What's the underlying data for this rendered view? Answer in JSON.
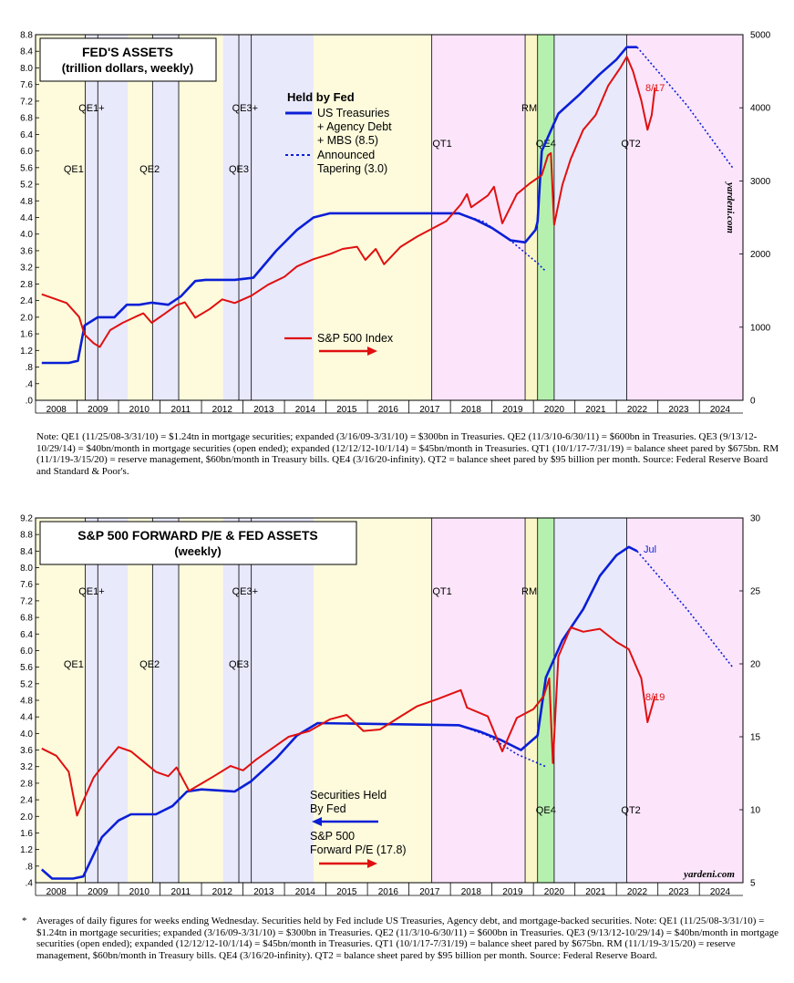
{
  "chart_data": [
    {
      "type": "line",
      "title": "FED'S ASSETS",
      "subtitle": "(trillion dollars, weekly)",
      "x_labels": [
        "2008",
        "2009",
        "2010",
        "2011",
        "2012",
        "2013",
        "2014",
        "2015",
        "2016",
        "2017",
        "2018",
        "2019",
        "2020",
        "2021",
        "2022",
        "2023",
        "2024"
      ],
      "left_axis": {
        "ylim": [
          0,
          8.8
        ],
        "ticks": [
          ".0",
          ".4",
          ".8",
          "1.2",
          "1.6",
          "2.0",
          "2.4",
          "2.8",
          "3.2",
          "3.6",
          "4.0",
          "4.4",
          "4.8",
          "5.2",
          "5.6",
          "6.0",
          "6.4",
          "6.8",
          "7.2",
          "7.6",
          "8.0",
          "8.4",
          "8.8"
        ]
      },
      "right_axis": {
        "ylim": [
          0,
          5000
        ],
        "ticks": [
          "0",
          "1000",
          "2000",
          "3000",
          "4000",
          "5000"
        ]
      },
      "legend_head": "Held by Fed",
      "legend_entries": [
        "US Treasuries",
        "+ Agency Debt",
        "+ MBS (8.5)",
        "Announced",
        "Tapering (3.0)",
        "S&P 500 Index"
      ],
      "watermark": "yardeni.com",
      "end_label": "8/17",
      "band_labels": [
        "QE1+",
        "QE1",
        "QE2",
        "QE3+",
        "QE3",
        "QT1",
        "RM",
        "QE4",
        "QT2"
      ],
      "series": [
        {
          "name": "Fed Assets (trillion $)",
          "axis": "left",
          "color": "#0a1fd6",
          "points": [
            [
              2007.85,
              0.9
            ],
            [
              2008.5,
              0.9
            ],
            [
              2008.72,
              0.95
            ],
            [
              2008.88,
              1.8
            ],
            [
              2009.2,
              2.0
            ],
            [
              2009.6,
              2.0
            ],
            [
              2009.9,
              2.3
            ],
            [
              2010.2,
              2.3
            ],
            [
              2010.5,
              2.35
            ],
            [
              2010.9,
              2.3
            ],
            [
              2011.2,
              2.5
            ],
            [
              2011.55,
              2.87
            ],
            [
              2011.8,
              2.9
            ],
            [
              2012.5,
              2.9
            ],
            [
              2012.95,
              2.95
            ],
            [
              2013.5,
              3.6
            ],
            [
              2014.0,
              4.1
            ],
            [
              2014.4,
              4.4
            ],
            [
              2014.8,
              4.5
            ],
            [
              2017.9,
              4.5
            ],
            [
              2018.3,
              4.35
            ],
            [
              2018.7,
              4.15
            ],
            [
              2019.15,
              3.85
            ],
            [
              2019.5,
              3.8
            ],
            [
              2019.75,
              4.1
            ],
            [
              2019.8,
              4.3
            ],
            [
              2019.9,
              6.0
            ],
            [
              2020.3,
              6.9
            ],
            [
              2020.8,
              7.35
            ],
            [
              2021.3,
              7.85
            ],
            [
              2021.7,
              8.2
            ],
            [
              2021.95,
              8.5
            ],
            [
              2022.2,
              8.5
            ]
          ]
        },
        {
          "name": "Announced Tapering (trillion $)",
          "axis": "left",
          "color": "#0a1fd6",
          "dash": true,
          "points": [
            [
              2017.9,
              4.5
            ],
            [
              2018.5,
              4.3
            ],
            [
              2019.2,
              3.8
            ],
            [
              2019.8,
              3.3
            ],
            [
              2020.0,
              3.1
            ]
          ]
        },
        {
          "name": "Announced Tapering path (trillion $)",
          "axis": "left",
          "color": "#0a1fd6",
          "dash": true,
          "points": [
            [
              2022.2,
              8.5
            ],
            [
              2023.4,
              7.1
            ],
            [
              2024.5,
              5.6
            ]
          ]
        },
        {
          "name": "S&P 500 Index",
          "axis": "right",
          "color": "#e01010",
          "points": [
            [
              2007.85,
              1450
            ],
            [
              2008.2,
              1380
            ],
            [
              2008.45,
              1330
            ],
            [
              2008.75,
              1140
            ],
            [
              2008.88,
              900
            ],
            [
              2009.1,
              780
            ],
            [
              2009.25,
              730
            ],
            [
              2009.5,
              960
            ],
            [
              2009.8,
              1060
            ],
            [
              2010.1,
              1140
            ],
            [
              2010.3,
              1190
            ],
            [
              2010.5,
              1060
            ],
            [
              2010.8,
              1180
            ],
            [
              2011.1,
              1300
            ],
            [
              2011.3,
              1340
            ],
            [
              2011.55,
              1130
            ],
            [
              2011.9,
              1250
            ],
            [
              2012.2,
              1380
            ],
            [
              2012.5,
              1330
            ],
            [
              2012.9,
              1430
            ],
            [
              2013.3,
              1580
            ],
            [
              2013.7,
              1690
            ],
            [
              2014.0,
              1830
            ],
            [
              2014.4,
              1930
            ],
            [
              2014.8,
              2000
            ],
            [
              2015.1,
              2070
            ],
            [
              2015.45,
              2100
            ],
            [
              2015.65,
              1920
            ],
            [
              2015.9,
              2070
            ],
            [
              2016.1,
              1860
            ],
            [
              2016.5,
              2100
            ],
            [
              2016.9,
              2240
            ],
            [
              2017.3,
              2360
            ],
            [
              2017.6,
              2450
            ],
            [
              2017.95,
              2680
            ],
            [
              2018.1,
              2820
            ],
            [
              2018.2,
              2640
            ],
            [
              2018.6,
              2800
            ],
            [
              2018.75,
              2920
            ],
            [
              2018.95,
              2420
            ],
            [
              2019.3,
              2820
            ],
            [
              2019.6,
              2960
            ],
            [
              2019.9,
              3080
            ],
            [
              2020.05,
              3350
            ],
            [
              2020.12,
              3380
            ],
            [
              2020.2,
              2400
            ],
            [
              2020.4,
              2950
            ],
            [
              2020.6,
              3300
            ],
            [
              2020.9,
              3700
            ],
            [
              2021.2,
              3900
            ],
            [
              2021.5,
              4300
            ],
            [
              2021.8,
              4550
            ],
            [
              2021.95,
              4700
            ],
            [
              2022.1,
              4500
            ],
            [
              2022.3,
              4100
            ],
            [
              2022.45,
              3700
            ],
            [
              2022.55,
              3900
            ],
            [
              2022.63,
              4280
            ]
          ]
        }
      ]
    },
    {
      "type": "line",
      "title": "S&P 500 FORWARD P/E & FED ASSETS",
      "subtitle": "(weekly)",
      "x_labels": [
        "2008",
        "2009",
        "2010",
        "2011",
        "2012",
        "2013",
        "2014",
        "2015",
        "2016",
        "2017",
        "2018",
        "2019",
        "2020",
        "2021",
        "2022",
        "2023",
        "2024"
      ],
      "left_axis": {
        "ylim": [
          0.4,
          9.2
        ],
        "ticks": [
          ".4",
          ".8",
          "1.2",
          "1.6",
          "2.0",
          "2.4",
          "2.8",
          "3.2",
          "3.6",
          "4.0",
          "4.4",
          "4.8",
          "5.2",
          "5.6",
          "6.0",
          "6.4",
          "6.8",
          "7.2",
          "7.6",
          "8.0",
          "8.4",
          "8.8",
          "9.2"
        ]
      },
      "right_axis": {
        "ylim": [
          5,
          30
        ],
        "ticks": [
          "5",
          "10",
          "15",
          "20",
          "25",
          "30"
        ]
      },
      "legend_entries": [
        "Securities Held",
        "By Fed",
        "S&P 500",
        "Forward P/E (17.8)"
      ],
      "watermark": "yardeni.com",
      "end_label_fed": "Jul",
      "end_label_pe": "8/19",
      "band_labels": [
        "QE1+",
        "QE1",
        "QE2",
        "QE3+",
        "QE3",
        "QT1",
        "RM",
        "QE4",
        "QT2"
      ],
      "series": [
        {
          "name": "Securities Held By Fed (trillion $)",
          "axis": "left",
          "color": "#0a1fd6",
          "points": [
            [
              2007.85,
              0.72
            ],
            [
              2008.1,
              0.5
            ],
            [
              2008.6,
              0.5
            ],
            [
              2008.85,
              0.55
            ],
            [
              2009.3,
              1.5
            ],
            [
              2009.7,
              1.9
            ],
            [
              2010.0,
              2.05
            ],
            [
              2010.6,
              2.05
            ],
            [
              2011.0,
              2.25
            ],
            [
              2011.35,
              2.6
            ],
            [
              2011.7,
              2.65
            ],
            [
              2012.5,
              2.6
            ],
            [
              2012.9,
              2.85
            ],
            [
              2013.5,
              3.4
            ],
            [
              2014.0,
              3.95
            ],
            [
              2014.5,
              4.25
            ],
            [
              2017.9,
              4.2
            ],
            [
              2018.4,
              4.05
            ],
            [
              2018.9,
              3.85
            ],
            [
              2019.4,
              3.6
            ],
            [
              2019.8,
              3.95
            ],
            [
              2020.0,
              5.35
            ],
            [
              2020.4,
              6.25
            ],
            [
              2020.9,
              7.0
            ],
            [
              2021.3,
              7.8
            ],
            [
              2021.7,
              8.3
            ],
            [
              2022.0,
              8.5
            ],
            [
              2022.2,
              8.4
            ]
          ]
        },
        {
          "name": "Tapering (trillion $)",
          "axis": "left",
          "color": "#0a1fd6",
          "dash": true,
          "points": [
            [
              2017.9,
              4.2
            ],
            [
              2018.6,
              3.95
            ],
            [
              2019.3,
              3.5
            ],
            [
              2020.0,
              3.2
            ]
          ]
        },
        {
          "name": "Tapering path (trillion $)",
          "axis": "left",
          "color": "#0a1fd6",
          "dash": true,
          "points": [
            [
              2022.2,
              8.4
            ],
            [
              2023.4,
              7.0
            ],
            [
              2024.5,
              5.6
            ]
          ]
        },
        {
          "name": "S&P 500 Forward P/E",
          "axis": "right",
          "color": "#e01010",
          "points": [
            [
              2007.85,
              14.2
            ],
            [
              2008.2,
              13.7
            ],
            [
              2008.5,
              12.6
            ],
            [
              2008.7,
              9.6
            ],
            [
              2008.85,
              10.6
            ],
            [
              2009.1,
              12.2
            ],
            [
              2009.4,
              13.3
            ],
            [
              2009.7,
              14.3
            ],
            [
              2010.0,
              14.0
            ],
            [
              2010.3,
              13.3
            ],
            [
              2010.6,
              12.6
            ],
            [
              2010.9,
              12.3
            ],
            [
              2011.1,
              12.9
            ],
            [
              2011.4,
              11.3
            ],
            [
              2011.7,
              11.8
            ],
            [
              2012.0,
              12.3
            ],
            [
              2012.4,
              13.0
            ],
            [
              2012.7,
              12.7
            ],
            [
              2013.0,
              13.4
            ],
            [
              2013.4,
              14.2
            ],
            [
              2013.8,
              15.0
            ],
            [
              2014.3,
              15.4
            ],
            [
              2014.8,
              16.2
            ],
            [
              2015.2,
              16.5
            ],
            [
              2015.6,
              15.4
            ],
            [
              2016.0,
              15.5
            ],
            [
              2016.5,
              16.4
            ],
            [
              2016.9,
              17.1
            ],
            [
              2017.4,
              17.6
            ],
            [
              2017.95,
              18.2
            ],
            [
              2018.1,
              17.0
            ],
            [
              2018.6,
              16.4
            ],
            [
              2018.95,
              14.0
            ],
            [
              2019.3,
              16.3
            ],
            [
              2019.7,
              16.9
            ],
            [
              2019.95,
              17.8
            ],
            [
              2020.08,
              19.0
            ],
            [
              2020.17,
              13.2
            ],
            [
              2020.3,
              20.5
            ],
            [
              2020.6,
              22.5
            ],
            [
              2020.9,
              22.2
            ],
            [
              2021.3,
              22.4
            ],
            [
              2021.7,
              21.5
            ],
            [
              2022.0,
              21.0
            ],
            [
              2022.3,
              19.0
            ],
            [
              2022.45,
              16.0
            ],
            [
              2022.55,
              17.0
            ],
            [
              2022.63,
              17.8
            ]
          ]
        }
      ]
    }
  ],
  "notes": {
    "top_note": "Note: QE1 (11/25/08-3/31/10) = $1.24tn in mortgage securities; expanded (3/16/09-3/31/10) = $300bn in Treasuries. QE2 (11/3/10-6/30/11) = $600bn in Treasuries. QE3 (9/13/12-10/29/14) = $40bn/month in mortgage securities (open ended); expanded (12/12/12-10/1/14) = $45bn/month in Treasuries. QT1 (10/1/17-7/31/19) = balance sheet pared by $675bn. RM (11/1/19-3/15/20) = reserve management, $60bn/month in Treasury bills. QE4 (3/16/20-infinity). QT2 = balance sheet pared by $95 billion per month. Source: Federal Reserve Board and Standard & Poor's.",
    "bottom_star": "*",
    "bottom_note": "Averages of daily figures for weeks ending Wednesday. Securities held by Fed include US Treasuries, Agency debt, and mortgage-backed securities. Note: QE1 (11/25/08-3/31/10) = $1.24tn in mortgage securities; expanded (3/16/09-3/31/10) = $300bn in Treasuries. QE2 (11/3/10-6/30/11) = $600bn in Treasuries. QE3 (9/13/12-10/29/14) = $40bn/month in mortgage securities (open ended); expanded (12/12/12-10/1/14) = $45bn/month in Treasuries. QT1 (10/1/17-7/31/19) = balance sheet pared by $675bn. RM (11/1/19-3/15/20) = reserve management, $60bn/month in Treasury bills. QE4 (3/16/20-infinity). QT2 = balance sheet pared by $95 billion per month. Source: Federal Reserve Board."
  },
  "colors": {
    "fed_line": "#0a1fd6",
    "sp_line": "#e01010",
    "qe_yellow": "#fdfbdc",
    "qe_blue": "#e8e9fb",
    "qt_pink": "#fce5fb",
    "rm_yellow": "#fbf6c8",
    "qe4_green": "#b6f0ae"
  }
}
